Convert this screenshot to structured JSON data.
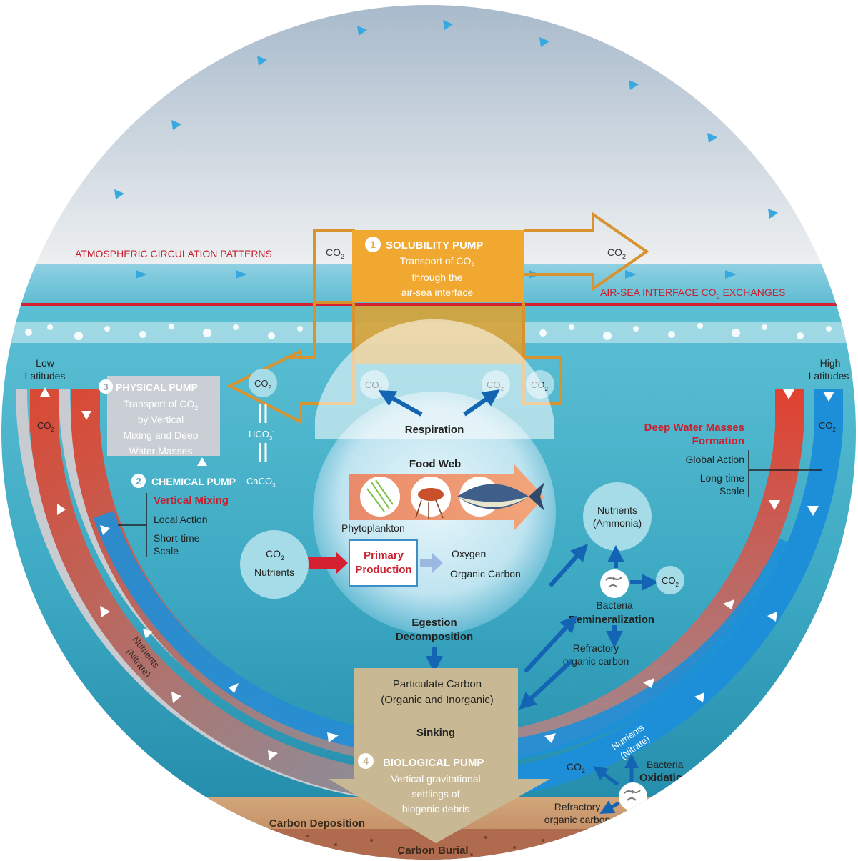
{
  "atmosphere": {
    "circulation_label": "ATMOSPHERIC CIRCULATION PATTERNS",
    "interface_label": "AIR-SEA INTERFACE CO",
    "interface_label_sub": "2",
    "interface_label_tail": " EXCHANGES",
    "co2_left": "CO",
    "co2_right": "CO",
    "co2_sub": "2"
  },
  "solubility_pump": {
    "number": "1",
    "title": "SOLUBILITY PUMP",
    "line1": "Transport of CO",
    "line1_sub": "2",
    "line2": "through the",
    "line3": "air-sea interface"
  },
  "physical_pump": {
    "number": "3",
    "title": "PHYSICAL PUMP",
    "line1": "Transport of CO",
    "line1_sub": "2",
    "line2": "by Vertical",
    "line3": "Mixing and Deep",
    "line4": "Water Masses"
  },
  "chemical_pump": {
    "number": "2",
    "title": "CHEMICAL PUMP",
    "co2": "CO",
    "hco3": "HCO",
    "caco3": "CaCO",
    "sub2": "2",
    "sub3": "3",
    "sup_minus": "-"
  },
  "low_latitudes": {
    "label1": "Low",
    "label2": "Latitudes",
    "co2": "CO",
    "co2_sub": "2",
    "vertical_mixing": "Vertical Mixing",
    "local_action": "Local Action",
    "short_time1": "Short-time",
    "short_time2": "Scale",
    "nutrients1": "Nutrients",
    "nutrients2": "(Nitrate)"
  },
  "high_latitudes": {
    "label1": "High",
    "label2": "Latitudes",
    "co2": "CO",
    "co2_sub": "2",
    "deep_water1": "Deep Water Masses",
    "deep_water2": "Formation",
    "global_action": "Global Action",
    "long_time1": "Long-time",
    "long_time2": "Scale",
    "nutrients1": "Nutrients",
    "nutrients2": "(Nitrate)"
  },
  "food_web": {
    "respiration": "Respiration",
    "title": "Food Web",
    "phytoplankton": "Phytoplankton",
    "co2_nutrients_1": "CO",
    "co2_nutrients_sub": "2",
    "co2_nutrients_2": "Nutrients",
    "primary1": "Primary",
    "primary2": "Production",
    "oxygen": "Oxygen",
    "organic_carbon": "Organic Carbon",
    "egestion": "Egestion",
    "decomposition": "Decomposition",
    "co2_bubble_a": "CO",
    "co2_bubble_b": "CO",
    "co2_bubble_c": "CO",
    "co2_sub": "2"
  },
  "remineralization": {
    "nutrients1": "Nutrients",
    "nutrients2": "(Ammonia)",
    "co2": "CO",
    "co2_sub": "2",
    "bacteria": "Bacteria",
    "remineralization": "Remineralization",
    "refractory1": "Refractory",
    "refractory2": "organic carbon"
  },
  "biological_pump": {
    "particulate1": "Particulate Carbon",
    "particulate2": "(Organic and Inorganic)",
    "sinking": "Sinking",
    "number": "4",
    "title": "BIOLOGICAL PUMP",
    "line1": "Vertical gravitational",
    "line2": "settlings of",
    "line3": "biogenic debris"
  },
  "deep_oxidation": {
    "co2": "CO",
    "co2_sub": "2",
    "bacteria": "Bacteria",
    "oxidation": "Oxidation",
    "refractory1": "Refractory",
    "refractory2": "organic carbon"
  },
  "sediment": {
    "deposition": "Carbon Deposition",
    "burial": "Carbon Burial"
  },
  "colors": {
    "sky_top": "#a9bccd",
    "sea": "#4fb3c8",
    "deep_sea": "#1f8fb0",
    "orange": "#f0a830",
    "orange_outline": "#d8922e",
    "red_text": "#c8202f",
    "warm_arc": "#d64a3a",
    "cold_arc": "#1d8fd8",
    "blue_arrow": "#1464b4",
    "sand": "#c8b894"
  }
}
